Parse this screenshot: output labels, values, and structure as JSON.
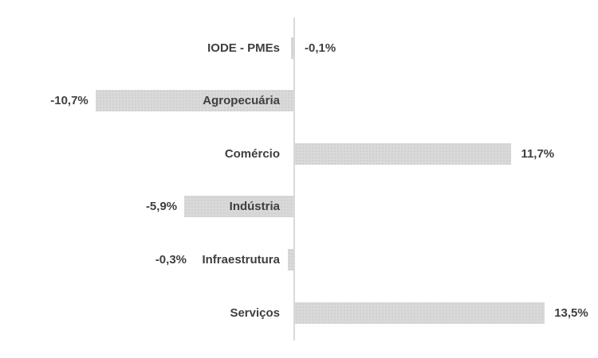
{
  "chart_data": {
    "type": "bar",
    "orientation": "horizontal",
    "title": "",
    "xlabel": "",
    "ylabel": "",
    "grid": false,
    "legend": false,
    "xlim": [
      -13,
      15
    ],
    "unit": "%",
    "bar_color": "#d9d9d9",
    "axis_color": "#d9d9d9",
    "label_color": "#3f3f3f",
    "categories": [
      "IODE - PMEs",
      "Agropecuária",
      "Comércio",
      "Indústria",
      "Infraestrutura",
      "Serviços"
    ],
    "values": [
      -0.1,
      -10.7,
      11.7,
      -5.9,
      -0.3,
      13.5
    ],
    "value_labels": [
      "-0,1%",
      "-10,7%",
      "11,7%",
      "-5,9%",
      "-0,3%",
      "13,5%"
    ],
    "value_label_placements": [
      "axis-right",
      "bar-outside-left",
      "bar-outside-right",
      "bar-outside-left",
      "before-category",
      "bar-outside-right"
    ]
  }
}
